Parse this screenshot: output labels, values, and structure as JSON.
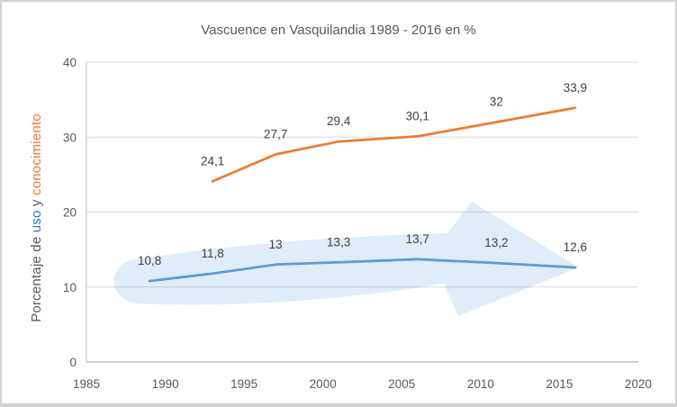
{
  "title": "Vascuence en Vasquilandia 1989 - 2016 en %",
  "y_axis_title": {
    "prefix": "Porcentaje de",
    "uso": "uso",
    "conjunction": "y",
    "conocimiento": "conocimiento"
  },
  "colors": {
    "uso_line": "#5B9BD5",
    "conocimiento_line": "#ED7D31",
    "uso_word_text": "#2E75B6",
    "conocimiento_word_text": "#ED7D31",
    "arrow_fill": "#5B9BD5",
    "gridline": "#D9D9D9",
    "axis_line": "#BFBFBF",
    "tick_text": "#595959",
    "data_label_text": "#404040",
    "title_text": "#595959"
  },
  "chart_data": {
    "type": "line",
    "title": "Vascuence en Vasquilandia 1989 - 2016 en %",
    "xlabel": "",
    "ylabel": "Porcentaje de uso y conocimiento",
    "xlim": [
      1985,
      2020
    ],
    "ylim": [
      0,
      40
    ],
    "x_ticks": [
      "1985",
      "1990",
      "1995",
      "2000",
      "2005",
      "2010",
      "2015",
      "2020"
    ],
    "y_ticks": [
      "0",
      "10",
      "20",
      "30",
      "40"
    ],
    "grid": true,
    "legend_position": "none",
    "annotation": "large translucent light-blue right-pointing swoosh arrow drawn behind the uso series",
    "series": [
      {
        "name": "uso",
        "x": [
          1989,
          1993,
          1997,
          2001,
          2006,
          2011,
          2016
        ],
        "values": [
          10.8,
          11.8,
          13,
          13.3,
          13.7,
          13.2,
          12.6
        ],
        "labels": [
          "10,8",
          "11,8",
          "13",
          "13,3",
          "13,7",
          "13,2",
          "12,6"
        ]
      },
      {
        "name": "conocimiento",
        "x": [
          1993,
          1997,
          2001,
          2006,
          2011,
          2016
        ],
        "values": [
          24.1,
          27.7,
          29.4,
          30.1,
          32,
          33.9
        ],
        "labels": [
          "24,1",
          "27,7",
          "29,4",
          "30,1",
          "32",
          "33,9"
        ]
      }
    ]
  }
}
